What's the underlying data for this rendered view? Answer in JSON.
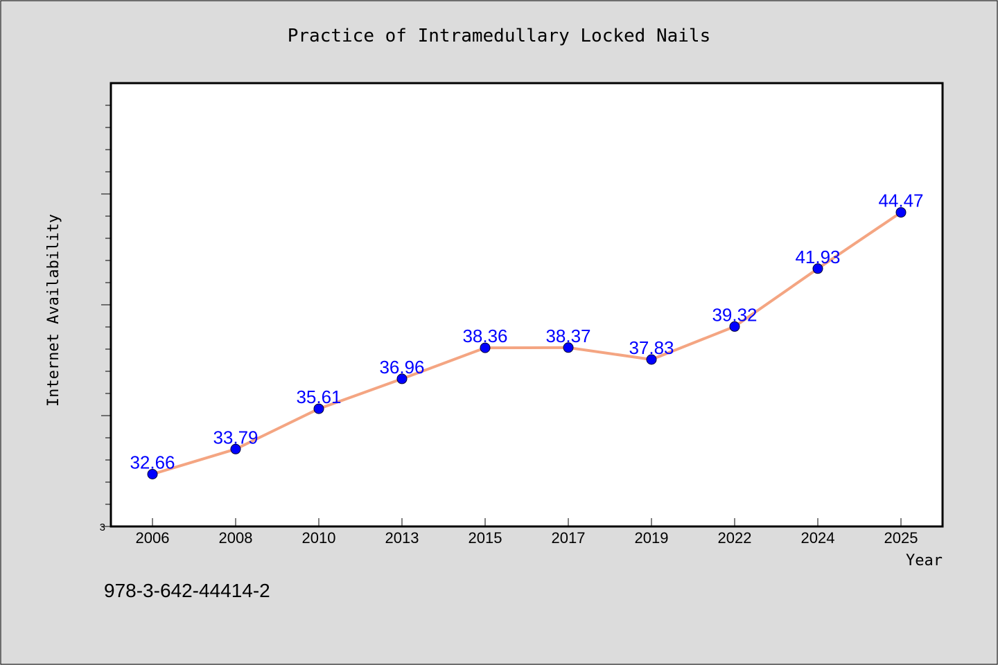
{
  "chart_data": {
    "type": "line",
    "title": "Practice of Intramedullary Locked Nails",
    "xlabel": "Year",
    "ylabel": "Internet Availability",
    "categories": [
      "2006",
      "2008",
      "2010",
      "2013",
      "2015",
      "2017",
      "2019",
      "2022",
      "2024",
      "2025"
    ],
    "series": [
      {
        "values": [
          32.66,
          33.79,
          35.61,
          36.96,
          38.36,
          38.37,
          37.83,
          39.32,
          41.93,
          44.47
        ],
        "data_labels": [
          "32.66",
          "33.79",
          "35.61",
          "36.96",
          "38.36",
          "38.37",
          "37.83",
          "39.32",
          "41.93",
          "44.47"
        ]
      }
    ],
    "ylim": [
      30.3,
      50.3
    ],
    "y_tick_labels": [
      "3"
    ],
    "grid": false,
    "colors": {
      "line": "#f4a582",
      "marker": "#0000ff",
      "data_label": "#0000ff",
      "plot_background": "#ffffff",
      "figure_background": "#dcdcdc"
    }
  },
  "footer_note": "978-3-642-44414-2"
}
